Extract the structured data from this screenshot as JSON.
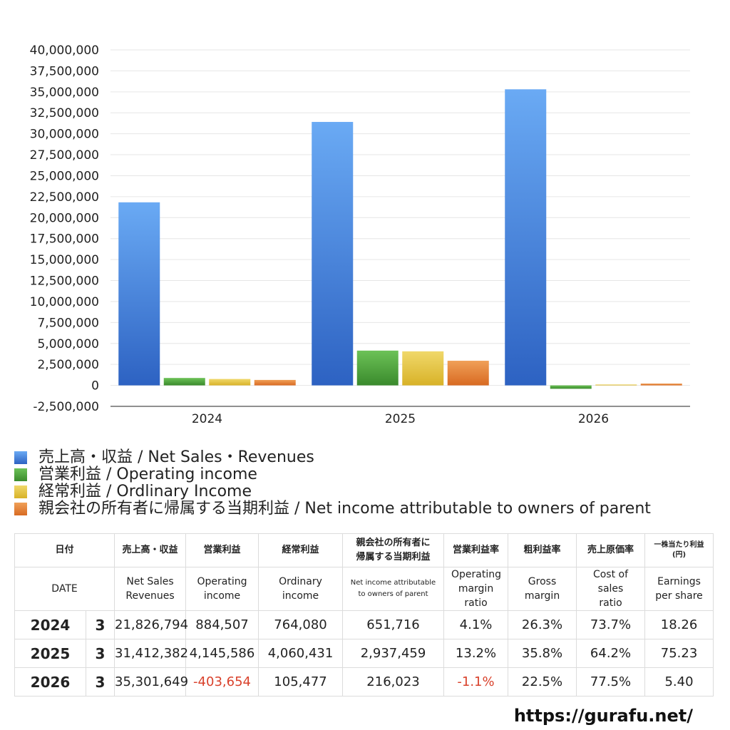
{
  "chart_data": {
    "type": "bar",
    "categories": [
      "2024",
      "2025",
      "2026"
    ],
    "ylim": [
      -2500000,
      40000000
    ],
    "yticks": [
      "40,000,000",
      "37,500,000",
      "35,000,000",
      "32,500,000",
      "30,000,000",
      "27,500,000",
      "25,000,000",
      "22,500,000",
      "20,000,000",
      "17,500,000",
      "15,000,000",
      "12,500,000",
      "10,000,000",
      "7,500,000",
      "5,000,000",
      "2,500,000",
      "0",
      "-2,500,000"
    ],
    "series": [
      {
        "name": "売上高・収益 / Net Sales・Revenues",
        "color": "#3a78d6",
        "values": [
          21826794,
          31412382,
          35301649
        ]
      },
      {
        "name": "営業利益 / Operating income",
        "color": "#4a9a3a",
        "values": [
          884507,
          4145586,
          -403654
        ]
      },
      {
        "name": "経常利益 / Ordlinary Income",
        "color": "#e2c23a",
        "values": [
          764080,
          4060431,
          105477
        ]
      },
      {
        "name": "親会社の所有者に帰属する当期利益 / Net income attributable to owners of parent",
        "color": "#e07a2e",
        "values": [
          651716,
          2937459,
          216023
        ]
      }
    ]
  },
  "table": {
    "headers_ja": [
      "日付",
      "売上高・収益",
      "営業利益",
      "経常利益",
      "親会社の所有者に帰属する当期利益",
      "営業利益率",
      "粗利益率",
      "売上原価率",
      "一株当たり利益(円)"
    ],
    "headers_en": [
      "DATE",
      "Net Sales Revenues",
      "Operating income",
      "Ordinary income",
      "Net income attributable to owners of parent",
      "Operating margin ratio",
      "Gross margin",
      "Cost of sales ratio",
      "Earnings per share"
    ],
    "rows": [
      {
        "year": "2024",
        "month": "3",
        "sales": "21,826,794",
        "op": "884,507",
        "ord": "764,080",
        "net": "651,716",
        "opm": "4.1%",
        "gm": "26.3%",
        "cost": "73.7%",
        "eps": "18.26"
      },
      {
        "year": "2025",
        "month": "3",
        "sales": "31,412,382",
        "op": "4,145,586",
        "ord": "4,060,431",
        "net": "2,937,459",
        "opm": "13.2%",
        "gm": "35.8%",
        "cost": "64.2%",
        "eps": "75.23"
      },
      {
        "year": "2026",
        "month": "3",
        "sales": "35,301,649",
        "op": "-403,654",
        "ord": "105,477",
        "net": "216,023",
        "opm": "-1.1%",
        "gm": "22.5%",
        "cost": "77.5%",
        "eps": "5.40"
      }
    ]
  },
  "site_url": "https://gurafu.net/"
}
